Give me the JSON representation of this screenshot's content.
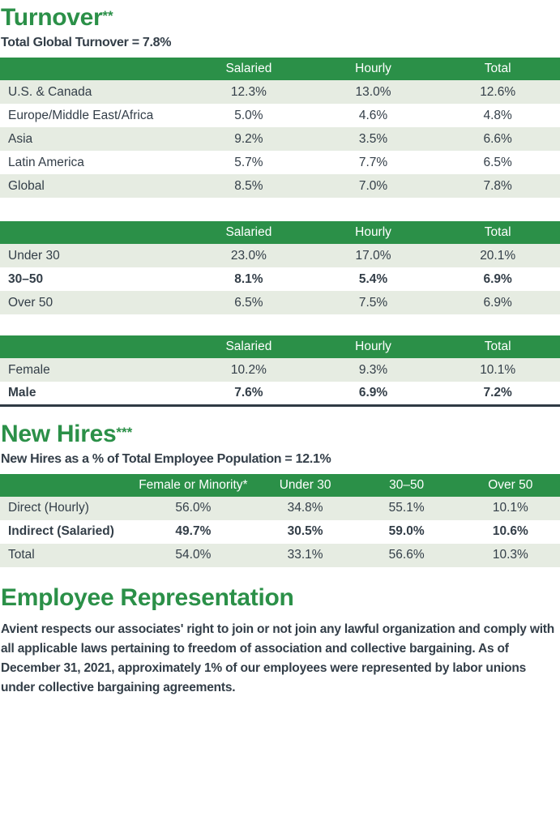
{
  "colors": {
    "accent_green": "#2b9048",
    "row_light_green": "#e6ece2",
    "ink_dark": "#333e48"
  },
  "turnover": {
    "heading": "Turnover",
    "heading_sup": "**",
    "subheading": "Total Global Turnover = 7.8%",
    "tables": [
      {
        "columns": [
          "Salaried",
          "Hourly",
          "Total"
        ],
        "rows": [
          {
            "label": "U.S. & Canada",
            "values": [
              "12.3%",
              "13.0%",
              "12.6%"
            ]
          },
          {
            "label": "Europe/Middle East/Africa",
            "values": [
              "5.0%",
              "4.6%",
              "4.8%"
            ]
          },
          {
            "label": "Asia",
            "values": [
              "9.2%",
              "3.5%",
              "6.6%"
            ]
          },
          {
            "label": "Latin America",
            "values": [
              "5.7%",
              "7.7%",
              "6.5%"
            ]
          },
          {
            "label": "Global",
            "values": [
              "8.5%",
              "7.0%",
              "7.8%"
            ]
          }
        ]
      },
      {
        "columns": [
          "Salaried",
          "Hourly",
          "Total"
        ],
        "rows": [
          {
            "label": "Under 30",
            "values": [
              "23.0%",
              "17.0%",
              "20.1%"
            ]
          },
          {
            "label": "30–50",
            "values": [
              "8.1%",
              "5.4%",
              "6.9%"
            ]
          },
          {
            "label": "Over 50",
            "values": [
              "6.5%",
              "7.5%",
              "6.9%"
            ]
          }
        ]
      },
      {
        "columns": [
          "Salaried",
          "Hourly",
          "Total"
        ],
        "rows": [
          {
            "label": "Female",
            "values": [
              "10.2%",
              "9.3%",
              "10.1%"
            ]
          },
          {
            "label": "Male",
            "values": [
              "7.6%",
              "6.9%",
              "7.2%"
            ]
          }
        ]
      }
    ]
  },
  "new_hires": {
    "heading": "New Hires",
    "heading_sup": "***",
    "subheading": "New Hires as a % of Total Employee Population = 12.1%",
    "table": {
      "columns": [
        "Female or Minority*",
        "Under 30",
        "30–50",
        "Over 50"
      ],
      "rows": [
        {
          "label": "Direct (Hourly)",
          "values": [
            "56.0%",
            "34.8%",
            "55.1%",
            "10.1%"
          ]
        },
        {
          "label": "Indirect (Salaried)",
          "values": [
            "49.7%",
            "30.5%",
            "59.0%",
            "10.6%"
          ]
        },
        {
          "label": "Total",
          "values": [
            "54.0%",
            "33.1%",
            "56.6%",
            "10.3%"
          ]
        }
      ]
    }
  },
  "employee_representation": {
    "heading": "Employee Representation",
    "body": "Avient respects our associates' right to join or not join any lawful organization and comply with all applicable laws pertaining to freedom of association and collective bargaining. As of December 31, 2021, approximately 1% of our employees were represented by labor unions under collective bargaining agreements."
  }
}
